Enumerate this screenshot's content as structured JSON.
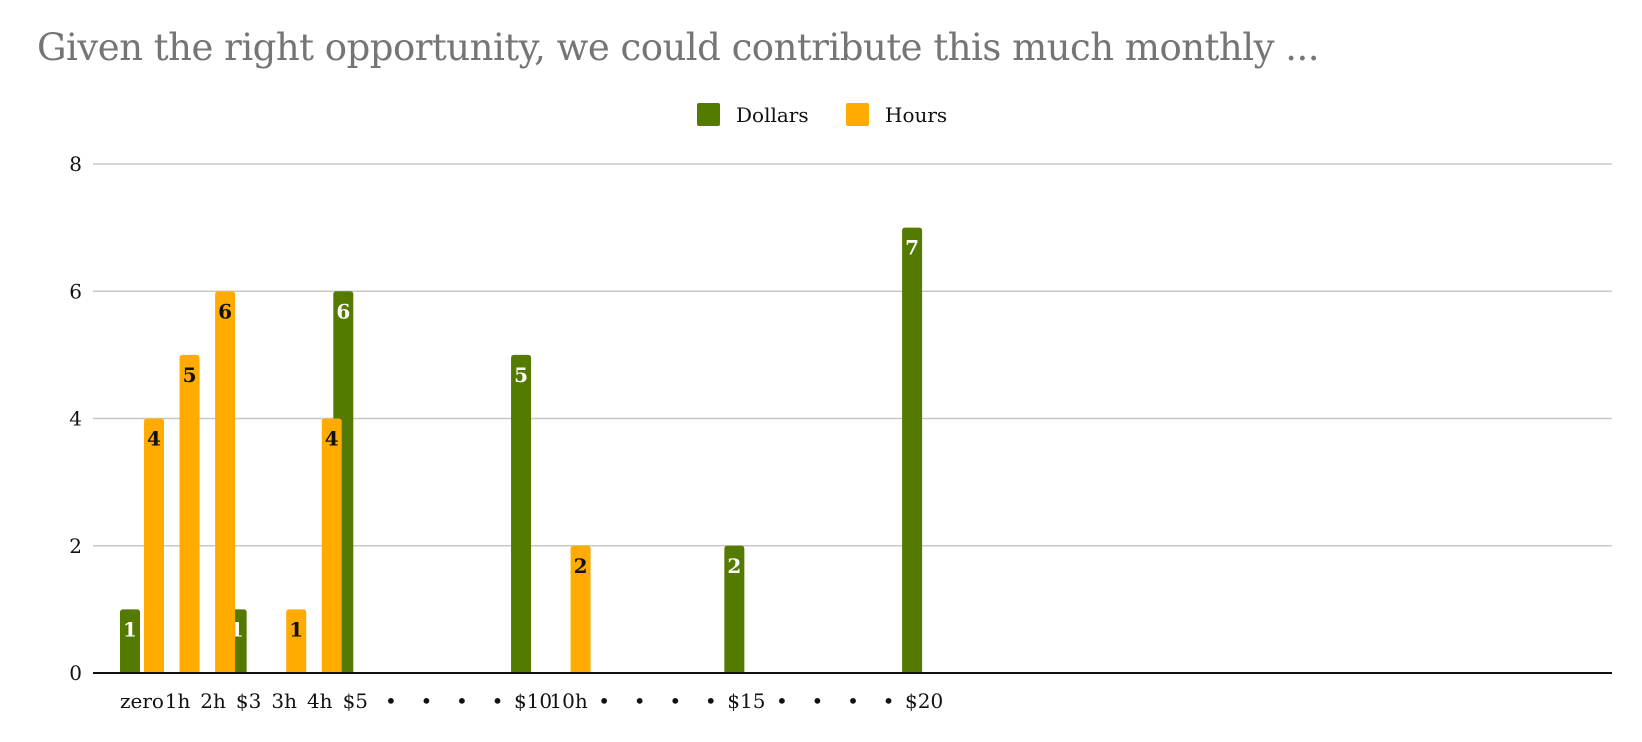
{
  "chart_data": {
    "type": "bar",
    "title": "Given the right opportunity, we could contribute this much monthly ...",
    "xlabel": "",
    "ylabel": "",
    "ylim": [
      0,
      8
    ],
    "yticks": [
      0,
      2,
      4,
      6,
      8
    ],
    "grid": true,
    "legend_position": "top-center",
    "categories": [
      "zero",
      "1h",
      "2h",
      "$3",
      "3h",
      "4h",
      "$5",
      "•",
      "•",
      "•",
      "•",
      "$10",
      "10h",
      "•",
      "•",
      "•",
      "•",
      "$15",
      "•",
      "•",
      "•",
      "•",
      "$20"
    ],
    "series": [
      {
        "name": "Dollars",
        "color": "#557a00",
        "label_color": "#ffffff",
        "values": [
          1,
          null,
          null,
          1,
          null,
          null,
          6,
          null,
          null,
          null,
          null,
          5,
          null,
          null,
          null,
          null,
          null,
          2,
          null,
          null,
          null,
          null,
          7
        ]
      },
      {
        "name": "Hours",
        "color": "#ffab00",
        "label_color": "#111111",
        "values": [
          4,
          5,
          6,
          null,
          1,
          4,
          null,
          null,
          null,
          null,
          null,
          null,
          2,
          null,
          null,
          null,
          null,
          null,
          null,
          null,
          null,
          null,
          null
        ]
      }
    ]
  }
}
